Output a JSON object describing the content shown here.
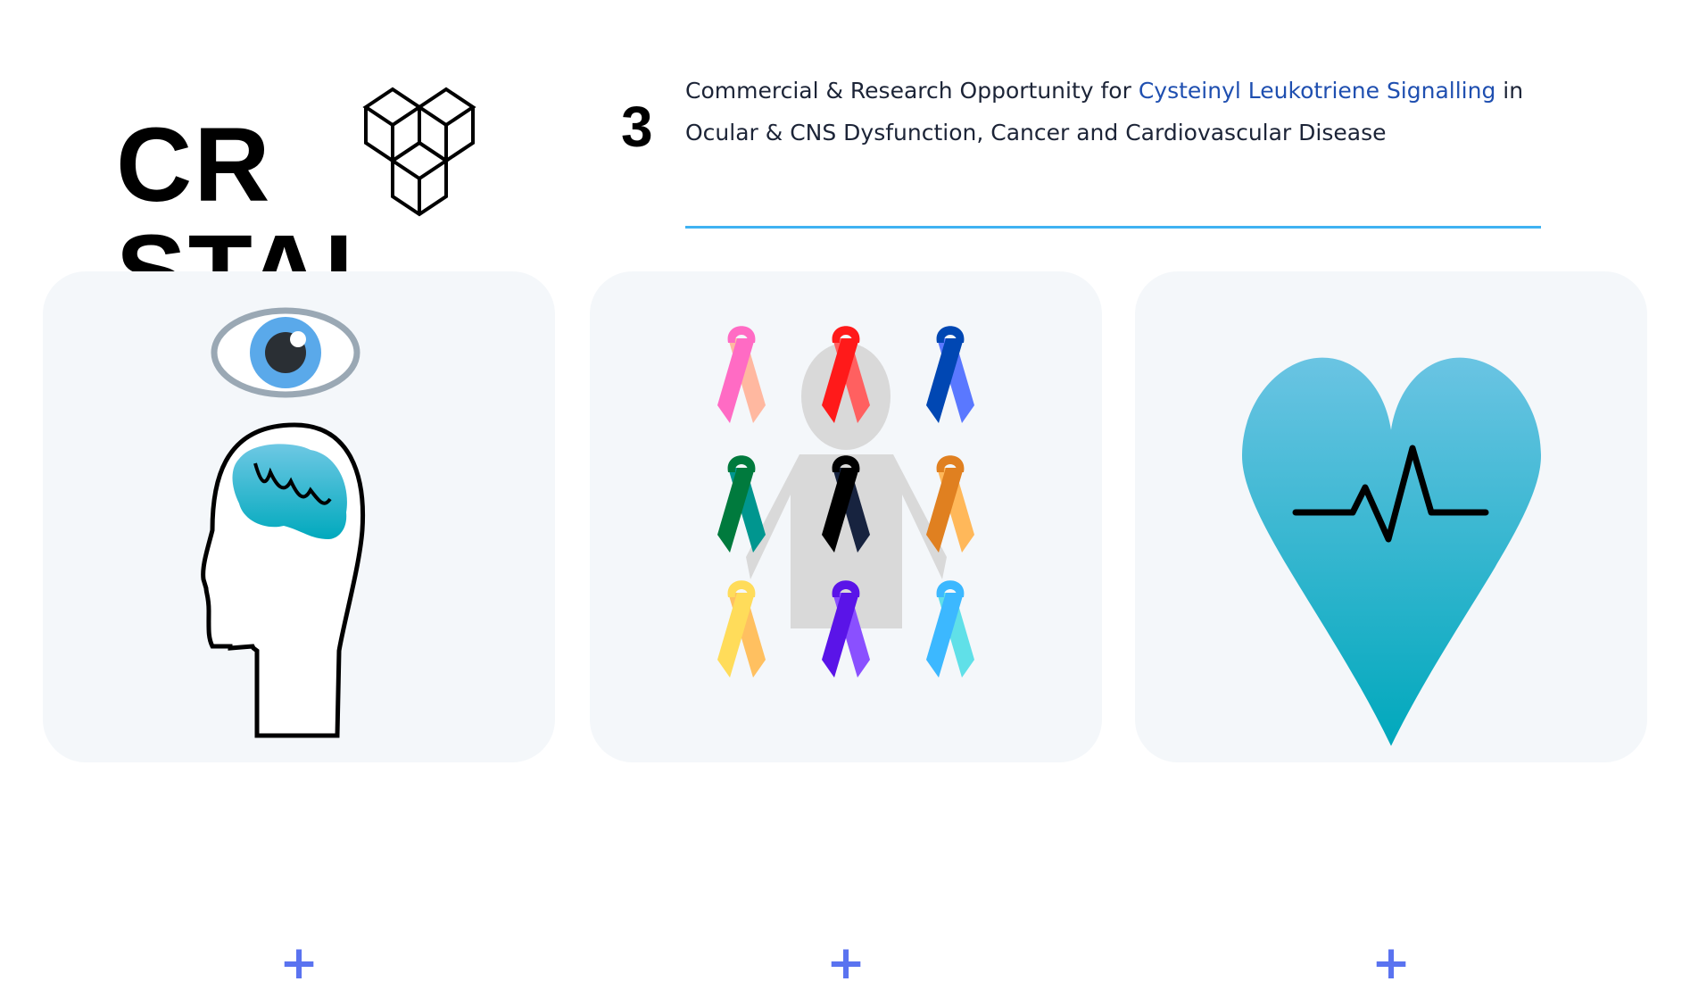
{
  "logo": {
    "text_left": "CR",
    "text_right": "STAL",
    "superscript": "3"
  },
  "headline": {
    "part1": "Commercial & Research Opportunity for ",
    "highlight": "Cysteinyl Leukotriene Signalling",
    "part2": " in Ocular & CNS Dysfunction, Cancer and Cardiovascular Disease"
  },
  "colors": {
    "accent": "#3fb2f2",
    "highlight": "#1f4fb0",
    "plus": "#5a73f0",
    "card_bg": "#f4f7fa",
    "heart": "#4fc1de"
  },
  "cards": [
    {
      "icon": "eye-brain-head-icon",
      "expand_label": "+"
    },
    {
      "icon": "cancer-ribbons-icon",
      "expand_label": "+"
    },
    {
      "icon": "heart-pulse-icon",
      "expand_label": "+"
    }
  ]
}
